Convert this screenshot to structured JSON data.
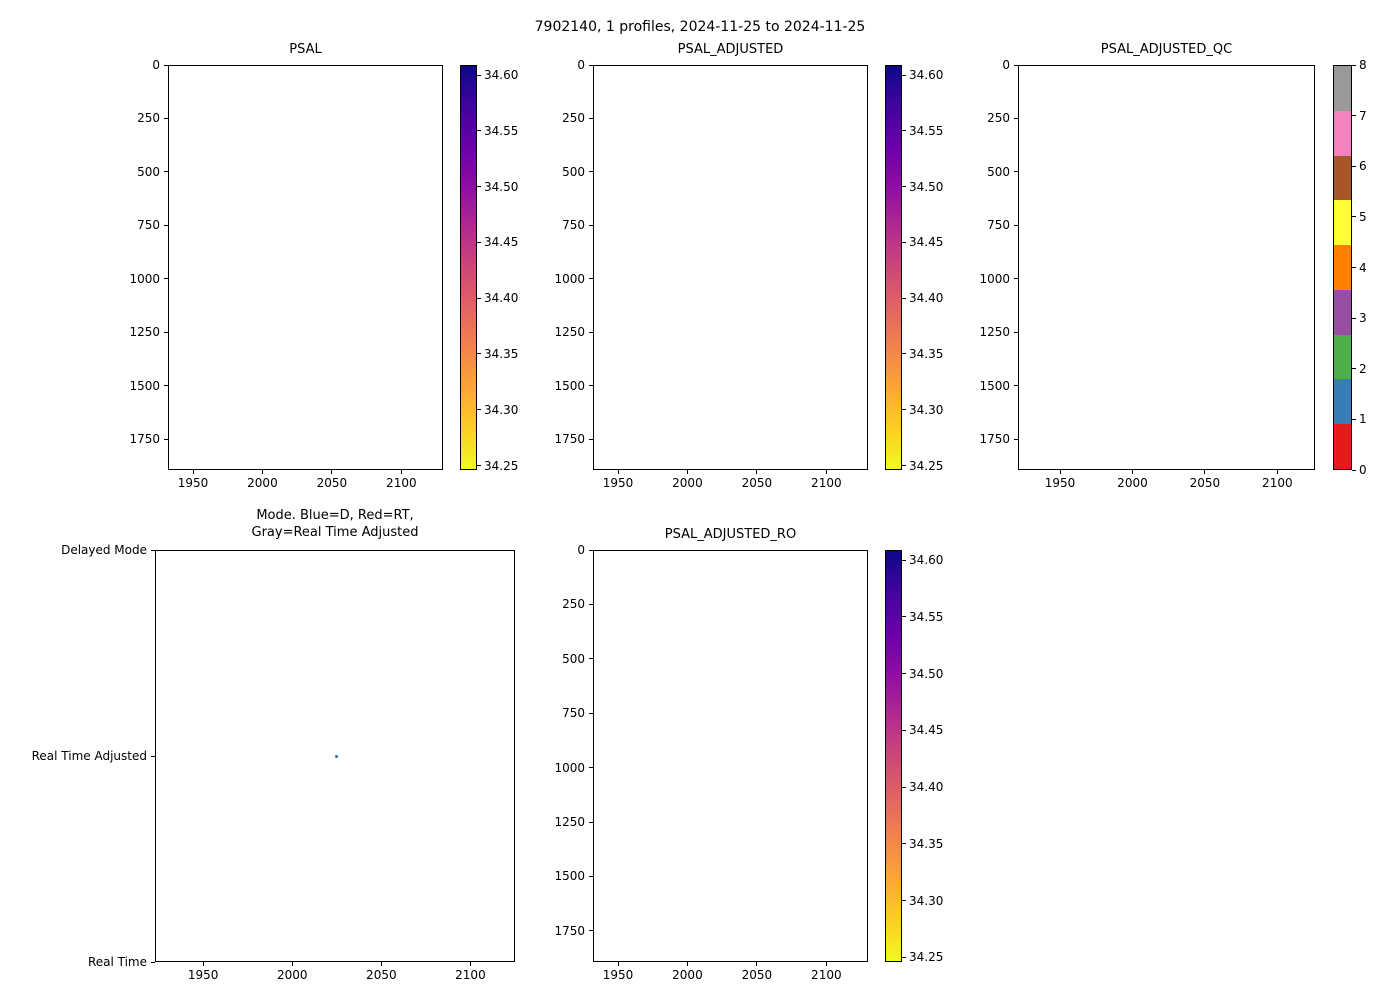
{
  "figure": {
    "title": "7902140, 1 profiles, 2024-11-25 to 2024-11-25",
    "background": "#ffffff"
  },
  "palette": {
    "axis_color": "#000000",
    "plasma_top_to_bottom": [
      "#0d0887",
      "#41049d",
      "#6a00a8",
      "#8f0da4",
      "#b12a90",
      "#cc4778",
      "#e16462",
      "#f2844b",
      "#fca636",
      "#fcce25",
      "#f0f921"
    ]
  },
  "chart_data": [
    {
      "type": "scatter",
      "title": "PSAL",
      "xlabel": "",
      "ylabel": "",
      "xlim": [
        1932,
        2130
      ],
      "ylim": [
        1893,
        0
      ],
      "xticks": [
        1950,
        2000,
        2050,
        2100
      ],
      "yticks": [
        0,
        250,
        500,
        750,
        1000,
        1250,
        1500,
        1750
      ],
      "points": [],
      "colorbar": {
        "type": "continuous",
        "colormap": "plasma_r",
        "vmin": 34.246,
        "vmax": 34.609,
        "ticks": [
          "34.60",
          "34.55",
          "34.50",
          "34.45",
          "34.40",
          "34.35",
          "34.30",
          "34.25"
        ]
      }
    },
    {
      "type": "scatter",
      "title": "PSAL_ADJUSTED",
      "xlabel": "",
      "ylabel": "",
      "xlim": [
        1932,
        2130
      ],
      "ylim": [
        1893,
        0
      ],
      "xticks": [
        1950,
        2000,
        2050,
        2100
      ],
      "yticks": [
        0,
        250,
        500,
        750,
        1000,
        1250,
        1500,
        1750
      ],
      "points": [],
      "colorbar": {
        "type": "continuous",
        "colormap": "plasma_r",
        "vmin": 34.246,
        "vmax": 34.609,
        "ticks": [
          "34.60",
          "34.55",
          "34.50",
          "34.45",
          "34.40",
          "34.35",
          "34.30",
          "34.25"
        ]
      }
    },
    {
      "type": "scatter",
      "title": "PSAL_ADJUSTED_QC",
      "xlabel": "",
      "ylabel": "",
      "xlim": [
        1921,
        2126
      ],
      "ylim": [
        1893,
        0
      ],
      "xticks": [
        1950,
        2000,
        2050,
        2100
      ],
      "yticks": [
        0,
        250,
        500,
        750,
        1000,
        1250,
        1500,
        1750
      ],
      "points": [],
      "colorbar": {
        "type": "discrete",
        "colormap": "Set1",
        "ticks": [
          "8",
          "7",
          "6",
          "5",
          "4",
          "3",
          "2",
          "1",
          "0"
        ],
        "colors_top_to_bottom": [
          "#999999",
          "#f781bf",
          "#a65628",
          "#ffff33",
          "#ff7f00",
          "#984ea3",
          "#4daf4a",
          "#377eb8",
          "#e41a1c"
        ]
      }
    },
    {
      "type": "scatter",
      "title": "Mode. Blue=D, Red=RT,\nGray=Real Time Adjusted",
      "xlabel": "",
      "ylabel": "",
      "xlim": [
        1923,
        2125
      ],
      "xticks": [
        1950,
        2000,
        2050,
        2100
      ],
      "yticks_labels": [
        "Delayed Mode",
        "Real Time Adjusted",
        "Real Time"
      ],
      "points": [
        {
          "x": 2025,
          "y": "Real Time Adjusted",
          "color": "#1f77b4"
        }
      ]
    },
    {
      "type": "scatter",
      "title": "PSAL_ADJUSTED_RO",
      "xlabel": "",
      "ylabel": "",
      "xlim": [
        1932,
        2130
      ],
      "ylim": [
        1893,
        0
      ],
      "xticks": [
        1950,
        2000,
        2050,
        2100
      ],
      "yticks": [
        0,
        250,
        500,
        750,
        1000,
        1250,
        1500,
        1750
      ],
      "points": [],
      "colorbar": {
        "type": "continuous",
        "colormap": "plasma_r",
        "vmin": 34.246,
        "vmax": 34.609,
        "ticks": [
          "34.60",
          "34.55",
          "34.50",
          "34.45",
          "34.40",
          "34.35",
          "34.30",
          "34.25"
        ]
      }
    }
  ]
}
